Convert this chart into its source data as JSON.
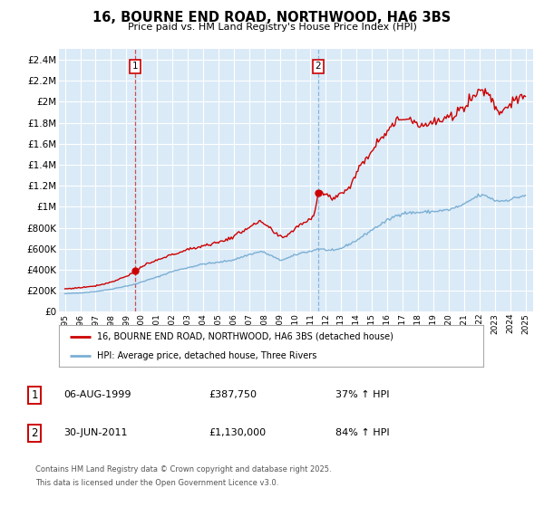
{
  "title": "16, BOURNE END ROAD, NORTHWOOD, HA6 3BS",
  "subtitle": "Price paid vs. HM Land Registry's House Price Index (HPI)",
  "legend_line1": "16, BOURNE END ROAD, NORTHWOOD, HA6 3BS (detached house)",
  "legend_line2": "HPI: Average price, detached house, Three Rivers",
  "sale1_date": "06-AUG-1999",
  "sale1_price": "£387,750",
  "sale1_hpi": "37% ↑ HPI",
  "sale2_date": "30-JUN-2011",
  "sale2_price": "£1,130,000",
  "sale2_hpi": "84% ↑ HPI",
  "copyright": "Contains HM Land Registry data © Crown copyright and database right 2025.",
  "licence": "This data is licensed under the Open Government Licence v3.0.",
  "sale1_year": 1999.59,
  "sale1_value": 387750,
  "sale2_year": 2011.49,
  "sale2_value": 1130000,
  "ylim_max": 2500000,
  "yticks": [
    0,
    200000,
    400000,
    600000,
    800000,
    1000000,
    1200000,
    1400000,
    1600000,
    1800000,
    2000000,
    2200000,
    2400000
  ],
  "ytick_labels": [
    "£0",
    "£200K",
    "£400K",
    "£600K",
    "£800K",
    "£1M",
    "£1.2M",
    "£1.4M",
    "£1.6M",
    "£1.8M",
    "£2M",
    "£2.2M",
    "£2.4M"
  ],
  "bg_color": "#daeaf7",
  "grid_color": "#ffffff",
  "red_color": "#cc0000",
  "blue_color": "#7bafd4",
  "vline1_color": "#cc3333",
  "vline2_color": "#7bafd4"
}
